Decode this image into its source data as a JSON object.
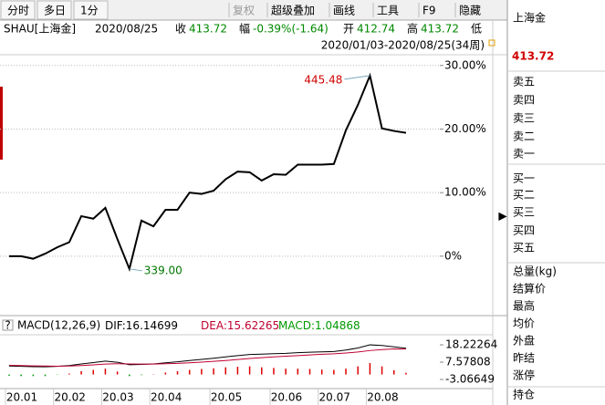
{
  "toolbar": {
    "tabs": [
      "分时",
      "多日",
      "1分"
    ],
    "buttons": [
      "复权",
      "超级叠加",
      "画线",
      "工具",
      "F9",
      "隐藏"
    ]
  },
  "quote": {
    "symbol": "SHAU[上海金]",
    "date": "2020/08/25",
    "items": [
      {
        "label": "收",
        "value": "413.72"
      },
      {
        "label": "幅",
        "value": "-0.39%(-1.64)"
      },
      {
        "label": "开",
        "value": "412.74"
      },
      {
        "label": "高",
        "value": "413.72"
      }
    ],
    "trailing_label": "低"
  },
  "range": "2020/01/03-2020/08/25(34周)",
  "chart_data": [
    {
      "type": "line",
      "color": "#000000",
      "grid": true,
      "categories": [
        "20.01",
        null,
        null,
        null,
        "20.02",
        null,
        null,
        null,
        "20.03",
        null,
        null,
        null,
        "20.04",
        null,
        null,
        null,
        null,
        "20.05",
        null,
        null,
        null,
        null,
        "20.06",
        null,
        null,
        null,
        "20.07",
        null,
        null,
        null,
        "20.08",
        null,
        null,
        null
      ],
      "values": [
        0,
        0,
        -0.4,
        0.4,
        1.4,
        2.2,
        6.3,
        5.9,
        7.6,
        2.7,
        -2.0,
        5.6,
        4.7,
        7.3,
        7.3,
        10.0,
        9.8,
        10.3,
        12.1,
        13.3,
        13.2,
        11.9,
        12.9,
        12.8,
        14.4,
        14.4,
        14.4,
        14.5,
        19.8,
        23.8,
        28.4,
        20.1,
        19.7,
        19.4
      ],
      "ylim": [
        -9.2,
        31.4
      ],
      "yticks": [
        {
          "value": 30,
          "label": "30.00%"
        },
        {
          "value": 20,
          "label": "20.00%"
        },
        {
          "value": 10,
          "label": "10.00%"
        },
        {
          "value": 0,
          "label": "0%"
        }
      ],
      "annotations": [
        "445.48",
        "339.00"
      ]
    },
    {
      "type": "macd",
      "title": "MACD(12,26,9)",
      "series": [
        {
          "name": "DIF:",
          "color": "#000000",
          "values": [
            5.2,
            5.0,
            4.8,
            4.7,
            5.0,
            5.5,
            6.5,
            7.3,
            8.2,
            7.5,
            6.0,
            6.2,
            6.5,
            7.2,
            7.8,
            8.6,
            9.3,
            10.0,
            10.8,
            11.6,
            12.3,
            12.5,
            12.8,
            13.0,
            13.4,
            13.7,
            13.9,
            14.1,
            15.0,
            16.3,
            18.2,
            17.8,
            17.0,
            16.14699
          ]
        },
        {
          "name": "DEA:",
          "color": "#c00030",
          "values": [
            5.6,
            5.5,
            5.3,
            5.2,
            5.1,
            5.2,
            5.5,
            5.9,
            6.4,
            6.6,
            6.5,
            6.4,
            6.4,
            6.6,
            6.8,
            7.2,
            7.6,
            8.1,
            8.6,
            9.2,
            9.8,
            10.3,
            10.8,
            11.2,
            11.6,
            12.0,
            12.4,
            12.7,
            13.2,
            13.8,
            14.7,
            15.3,
            15.7,
            15.62265
          ]
        },
        {
          "name": "MACD:",
          "color": "#009900",
          "up_color": "#dd0000",
          "down_color": "#009900",
          "values": [
            -0.8,
            -1.0,
            -1.0,
            -1.0,
            -0.2,
            0.6,
            2.0,
            2.8,
            3.6,
            1.8,
            -1.0,
            -0.4,
            0.2,
            1.2,
            2.0,
            2.8,
            3.4,
            3.8,
            4.4,
            4.8,
            5.0,
            4.4,
            4.0,
            3.6,
            3.6,
            3.4,
            3.0,
            2.8,
            3.6,
            5.0,
            7.0,
            5.0,
            2.6,
            1.04868
          ]
        }
      ],
      "ylim": [
        -8.1,
        24.4
      ],
      "yticks": [
        18.22264,
        7.57808,
        -3.06649
      ]
    }
  ],
  "sidebar": {
    "name": "上海金",
    "price": "413.72",
    "sell": [
      "卖五",
      "卖四",
      "卖三",
      "卖二",
      "卖一"
    ],
    "buy": [
      "买一",
      "买二",
      "买三",
      "买四",
      "买五"
    ],
    "stats": [
      "总量(kg)",
      "结算价",
      "最高",
      "均价",
      "外盘",
      "昨结",
      "涨停"
    ],
    "footer": "持仓"
  }
}
